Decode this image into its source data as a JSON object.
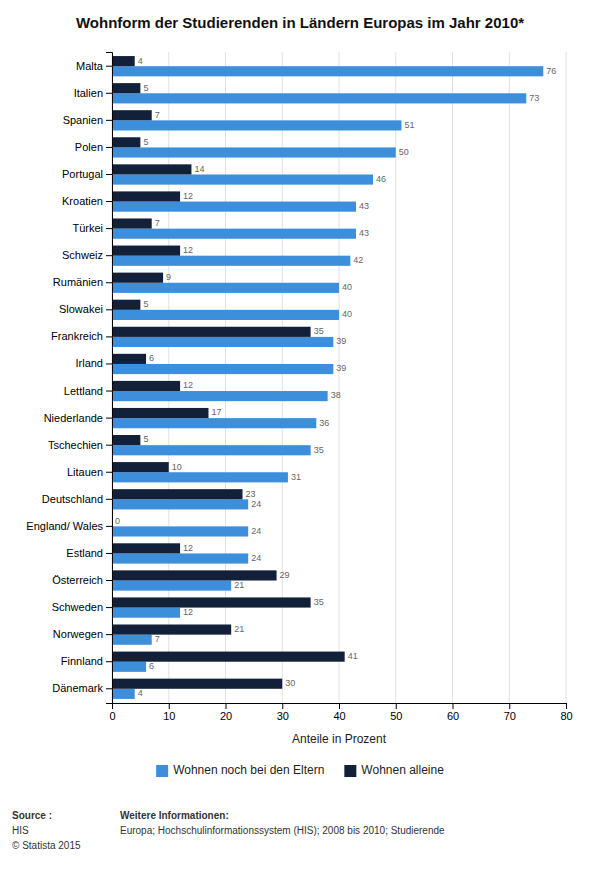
{
  "chart_data": {
    "type": "bar",
    "orientation": "horizontal",
    "title": "Wohnform der Studierenden in Ländern Europas im Jahr 2010*",
    "xlabel": "Anteile in Prozent",
    "categories": [
      "Malta",
      "Italien",
      "Spanien",
      "Polen",
      "Portugal",
      "Kroatien",
      "Türkei",
      "Schweiz",
      "Rumänien",
      "Slowakei",
      "Frankreich",
      "Irland",
      "Lettland",
      "Niederlande",
      "Tschechien",
      "Litauen",
      "Deutschland",
      "England/ Wales",
      "Estland",
      "Österreich",
      "Schweden",
      "Norwegen",
      "Finnland",
      "Dänemark"
    ],
    "series": [
      {
        "name": "Wohnen noch bei den Eltern",
        "color": "#3d8fdb",
        "values": [
          76,
          73,
          51,
          50,
          46,
          43,
          43,
          42,
          40,
          40,
          39,
          39,
          38,
          36,
          35,
          31,
          24,
          24,
          24,
          21,
          12,
          7,
          6,
          4
        ]
      },
      {
        "name": "Wohnen alleine",
        "color": "#12203a",
        "values": [
          4,
          5,
          7,
          5,
          14,
          12,
          7,
          12,
          9,
          5,
          35,
          6,
          12,
          17,
          5,
          10,
          23,
          0,
          12,
          29,
          35,
          21,
          41,
          30
        ]
      }
    ],
    "xlim": [
      0,
      80
    ],
    "xticks": [
      0,
      10,
      20,
      30,
      40,
      50,
      60,
      70,
      80
    ],
    "grid": true,
    "data_labels": true,
    "annotations": [
      "Source :",
      "HIS",
      "© Statista 2015",
      "Weitere Informationen:",
      "Europa; Hochschulinformationssystem (HIS); 2008 bis 2010; Studierende"
    ]
  }
}
